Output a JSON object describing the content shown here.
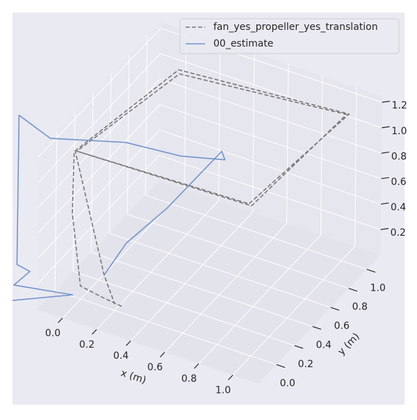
{
  "chart_data": {
    "type": "line3d",
    "xlabel": "x (m)",
    "ylabel": "y (m)",
    "xlim": [
      -0.15,
      1.15
    ],
    "ylim": [
      -0.2,
      1.15
    ],
    "zlim": [
      0,
      1.25
    ],
    "xticks": [
      {
        "value": 0,
        "label": "0.0"
      },
      0.2,
      0.4,
      0.6,
      0.8,
      {
        "value": 1,
        "label": "1.0"
      }
    ],
    "yticks": [
      {
        "value": 0,
        "label": "0.0"
      },
      0.2,
      0.4,
      0.6,
      0.8,
      {
        "value": 1,
        "label": "1.0"
      }
    ],
    "zticks": [
      0.2,
      0.4,
      0.6,
      0.8,
      {
        "value": 1,
        "label": "1.0"
      },
      1.2
    ],
    "grid": true,
    "legend": "upper right",
    "series": [
      {
        "name": "fan_yes_propeller_yes_translation",
        "color": "#777777",
        "linestyle": "dashed",
        "x": [
          0.24,
          0.15,
          0.05,
          -0.08,
          -0.12,
          0,
          1.0,
          0.88,
          -0.11,
          0.01,
          0.99,
          0.9,
          -0.12,
          0.11,
          0.2
        ],
        "y": [
          0.0,
          -0.05,
          -0.1,
          0.05,
          0.14,
          1.07,
          1.07,
          0.19,
          0.15,
          1.06,
          1.06,
          0.18,
          0.15,
          0.05,
          0.0
        ],
        "z": [
          0.05,
          0.12,
          0.2,
          0.6,
          1.0,
          1.0,
          1.1,
          1.0,
          1.0,
          0.98,
          1.1,
          1.0,
          1.0,
          0.2,
          0.05
        ]
      },
      {
        "name": "00_estimate",
        "color": "#7293cb",
        "linestyle": "solid",
        "x": [
          0.11,
          0.18,
          0.32,
          0.43,
          0.48,
          0.32,
          0.07,
          -0.23,
          -0.44,
          -0.27,
          -0.21,
          -0.25,
          0.0,
          -0.25
        ],
        "y": [
          0.05,
          0.16,
          0.34,
          0.74,
          0.68,
          0.49,
          0.35,
          0.08,
          0.13,
          -0.2,
          -0.17,
          -0.27,
          -0.09,
          -0.3
        ],
        "z": [
          0.2,
          0.4,
          0.6,
          0.8,
          0.8,
          0.9,
          1.0,
          1.1,
          1.15,
          0.3,
          0.25,
          0.2,
          0.1,
          0.1
        ]
      }
    ]
  }
}
